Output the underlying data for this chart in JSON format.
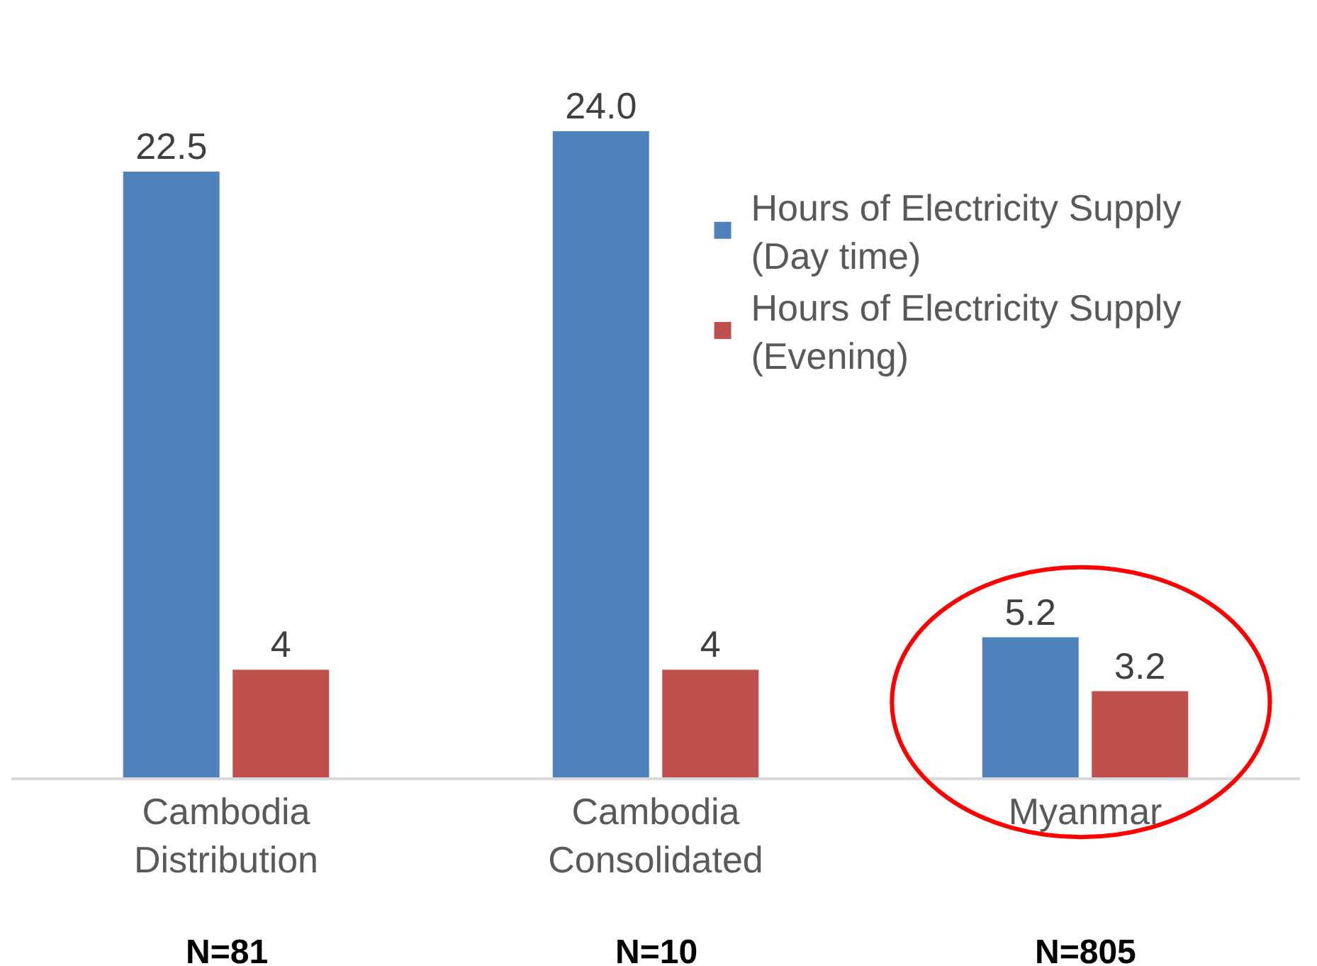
{
  "chart_data": {
    "type": "bar",
    "categories": [
      "Cambodia Distribution",
      "Cambodia Consolidated",
      "Myanmar"
    ],
    "series": [
      {
        "name": "Hours of Electricity Supply (Day time)",
        "color": "#4f81bd",
        "values": [
          22.5,
          24,
          5.2
        ],
        "value_labels": [
          "22.5",
          "24.0",
          "5.2"
        ]
      },
      {
        "name": "Hours of Electricity Supply (Evening)",
        "color": "#c0504d",
        "values": [
          4,
          4,
          3.2
        ],
        "value_labels": [
          "4",
          "4",
          "3.2"
        ]
      }
    ],
    "annotations": [
      "N=81",
      "N=10",
      "N=805"
    ],
    "legend": "top right",
    "grid": false,
    "tick_labels": "x"
  }
}
